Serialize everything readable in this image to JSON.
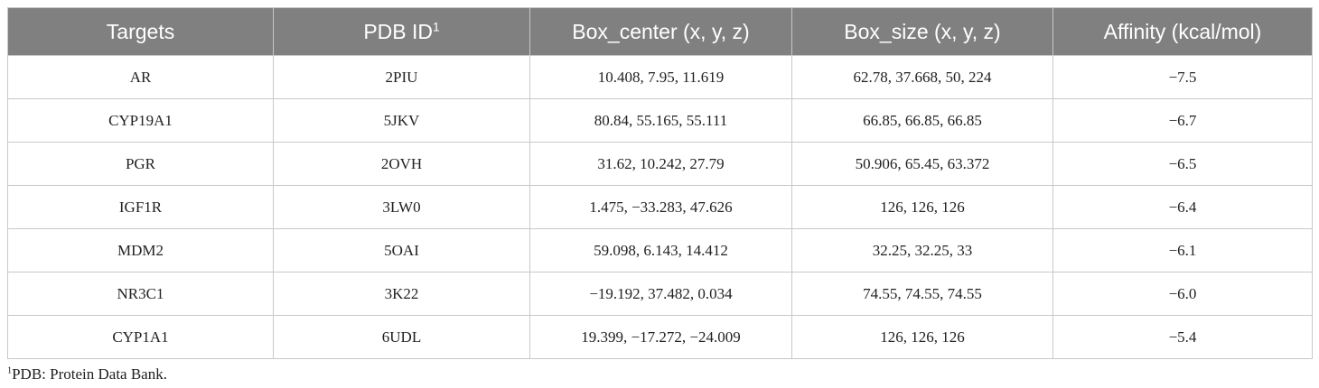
{
  "table": {
    "header": [
      {
        "text": "Targets"
      },
      {
        "text": "PDB ID",
        "sup": "1"
      },
      {
        "text": "Box_center (x, y, z)"
      },
      {
        "text": "Box_size (x, y, z)"
      },
      {
        "text": "Affinity (kcal/mol)"
      }
    ],
    "rows": [
      [
        "AR",
        "2PIU",
        "10.408, 7.95, 11.619",
        "62.78, 37.668, 50, 224",
        "−7.5"
      ],
      [
        "CYP19A1",
        "5JKV",
        "80.84, 55.165, 55.111",
        "66.85, 66.85, 66.85",
        "−6.7"
      ],
      [
        "PGR",
        "2OVH",
        "31.62, 10.242, 27.79",
        "50.906, 65.45, 63.372",
        "−6.5"
      ],
      [
        "IGF1R",
        "3LW0",
        "1.475, −33.283, 47.626",
        "126, 126, 126",
        "−6.4"
      ],
      [
        "MDM2",
        "5OAI",
        "59.098, 6.143, 14.412",
        "32.25, 32.25, 33",
        "−6.1"
      ],
      [
        "NR3C1",
        "3K22",
        "−19.192, 37.482, 0.034",
        "74.55, 74.55, 74.55",
        "−6.0"
      ],
      [
        "CYP1A1",
        "6UDL",
        "19.399, −17.272, −24.009",
        "126, 126, 126",
        "−5.4"
      ]
    ]
  },
  "footnote": {
    "sup": "1",
    "text": "PDB: Protein Data Bank."
  }
}
